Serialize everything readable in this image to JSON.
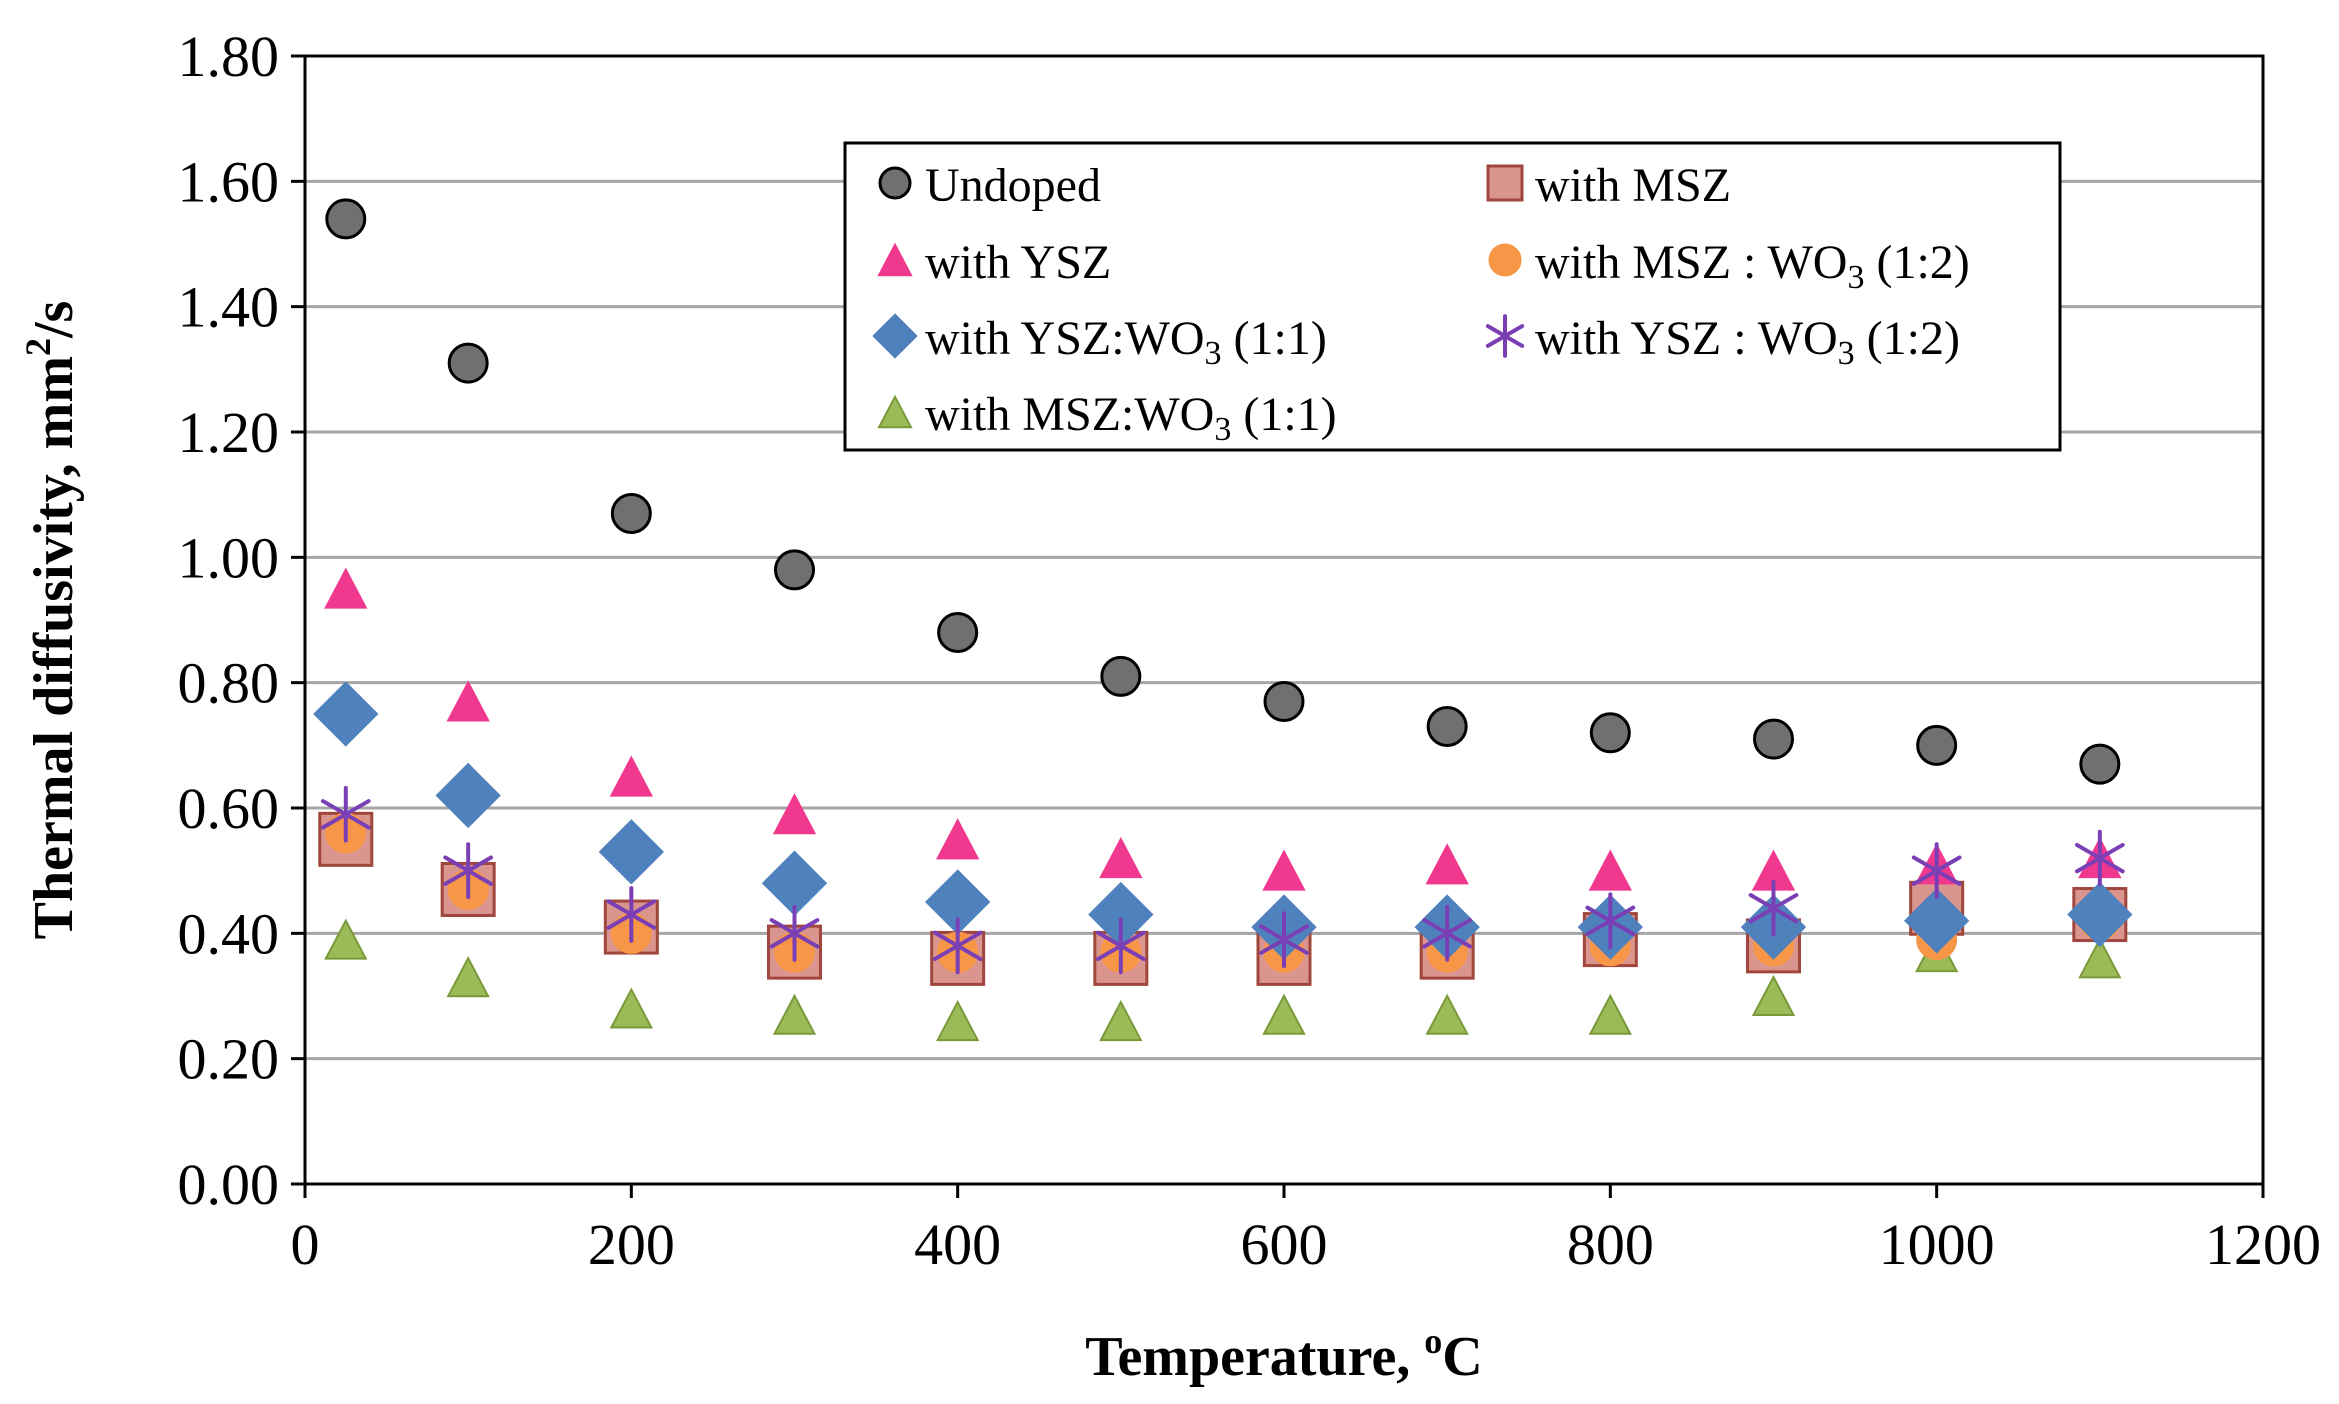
{
  "chart_data": {
    "type": "scatter",
    "xlabel": "Temperature, ",
    "xlabel_sup": "o",
    "xlabel_suffix": "C",
    "ylabel": "Thermal diffusivity, mm",
    "ylabel_sup": "2",
    "ylabel_suffix": "/s",
    "xlim": [
      0,
      1200
    ],
    "ylim": [
      0,
      1.8
    ],
    "x_ticks": [
      "0",
      "200",
      "400",
      "600",
      "800",
      "1000",
      "1200"
    ],
    "y_ticks": [
      "0.00",
      "0.20",
      "0.40",
      "0.60",
      "0.80",
      "1.00",
      "1.20",
      "1.40",
      "1.60",
      "1.80"
    ],
    "grid": "horizontal",
    "legend_position": "top-center",
    "x": [
      25,
      100,
      200,
      300,
      400,
      500,
      600,
      700,
      800,
      900,
      1000,
      1100
    ],
    "series": [
      {
        "name": "Undoped",
        "legend_parts": [
          "Undoped"
        ],
        "marker": "circle",
        "color": "#707070",
        "stroke": "#000000",
        "values": [
          1.54,
          1.31,
          1.07,
          0.98,
          0.88,
          0.81,
          0.77,
          0.73,
          0.72,
          0.71,
          0.7,
          0.67
        ]
      },
      {
        "name": "with MSZ",
        "legend_parts": [
          "with MSZ"
        ],
        "marker": "square",
        "color": "#D9958E",
        "stroke": "#A0463D",
        "values": [
          0.55,
          0.47,
          0.41,
          0.37,
          0.36,
          0.36,
          0.36,
          0.37,
          0.39,
          0.38,
          0.44,
          0.43
        ]
      },
      {
        "name": "with YSZ",
        "legend_parts": [
          "with YSZ"
        ],
        "marker": "triangle",
        "color": "#F0388F",
        "stroke": "#F0388F",
        "values": [
          0.95,
          0.77,
          0.65,
          0.59,
          0.55,
          0.52,
          0.5,
          0.51,
          0.5,
          0.5,
          0.51,
          0.52
        ]
      },
      {
        "name": "with MSZ : WO3 (1:2)",
        "legend_parts": [
          "with MSZ : WO",
          "3",
          " (1:2)"
        ],
        "marker": "circle",
        "color": "#F79646",
        "stroke": "#F79646",
        "values": [
          0.56,
          0.47,
          0.4,
          0.37,
          0.37,
          0.37,
          0.37,
          0.37,
          0.38,
          0.38,
          0.39,
          0.42
        ]
      },
      {
        "name": "with YSZ:WO3 (1:1)",
        "legend_parts": [
          "with YSZ:WO",
          "3",
          " (1:1)"
        ],
        "marker": "diamond",
        "color": "#4F81BD",
        "stroke": "#4F81BD",
        "values": [
          0.75,
          0.62,
          0.53,
          0.48,
          0.45,
          0.43,
          0.41,
          0.41,
          0.41,
          0.41,
          0.42,
          0.43
        ]
      },
      {
        "name": "with YSZ : WO3 (1:2)",
        "legend_parts": [
          "with YSZ : WO",
          "3",
          " (1:2)"
        ],
        "marker": "star",
        "color": "#7B3FB5",
        "stroke": "#7B3FB5",
        "values": [
          0.59,
          0.5,
          0.43,
          0.4,
          0.38,
          0.38,
          0.39,
          0.4,
          0.42,
          0.44,
          0.5,
          0.52
        ]
      },
      {
        "name": "with MSZ:WO3 (1:1)",
        "legend_parts": [
          "with MSZ:WO",
          "3",
          " (1:1)"
        ],
        "marker": "triangle",
        "color": "#9BBB59",
        "stroke": "#7A9A3A",
        "values": [
          0.39,
          0.33,
          0.28,
          0.27,
          0.26,
          0.26,
          0.27,
          0.27,
          0.27,
          0.3,
          0.37,
          0.36
        ]
      }
    ]
  }
}
